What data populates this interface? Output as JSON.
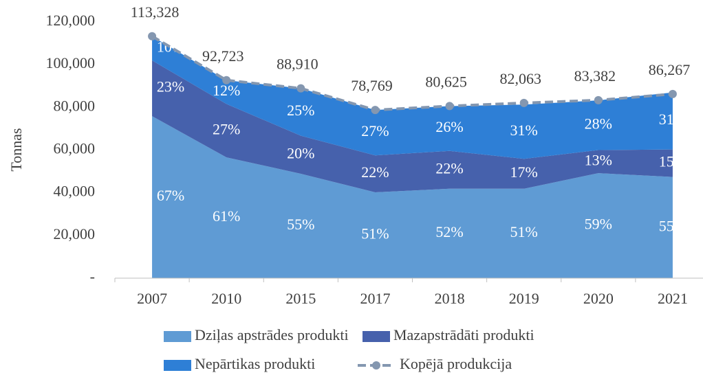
{
  "chart_data": {
    "type": "stacked_area",
    "y_label": "Tonnas",
    "categories": [
      "2007",
      "2010",
      "2015",
      "2017",
      "2018",
      "2019",
      "2020",
      "2021"
    ],
    "series": [
      {
        "name": "Dziļas apstrādes produkti",
        "color": "#5f9bd4",
        "values": [
          75900,
          56600,
          48900,
          40200,
          41900,
          41900,
          49200,
          47400
        ],
        "share_labels": [
          "67%",
          "61%",
          "55%",
          "51%",
          "52%",
          "51%",
          "59%",
          "55%"
        ]
      },
      {
        "name": "Mazapstrādāti produkti",
        "color": "#4661ac",
        "values": [
          26100,
          25000,
          17800,
          17300,
          17700,
          14000,
          10800,
          12900
        ],
        "share_labels": [
          "23%",
          "27%",
          "20%",
          "22%",
          "22%",
          "17%",
          "13%",
          "15%"
        ]
      },
      {
        "name": "Nepārtikas produkti",
        "color": "#2e7fd6",
        "values": [
          11300,
          11100,
          22200,
          21300,
          21000,
          25400,
          23300,
          26700
        ],
        "share_labels": [
          "10%",
          "12%",
          "25%",
          "27%",
          "26%",
          "31%",
          "28%",
          "31%"
        ]
      }
    ],
    "total": {
      "name": "Kopējā produkcija",
      "color": "#8497b0",
      "values": [
        113328,
        92723,
        88910,
        78769,
        80625,
        82063,
        83382,
        86267
      ],
      "value_labels": [
        "113,328",
        "92,723",
        "88,910",
        "78,769",
        "80,625",
        "82,063",
        "83,382",
        "86,267"
      ]
    },
    "ylim": [
      0,
      120000
    ],
    "yticks": [
      {
        "value": 0,
        "label": "-"
      },
      {
        "value": 20000,
        "label": "20,000"
      },
      {
        "value": 40000,
        "label": "40,000"
      },
      {
        "value": 60000,
        "label": "60,000"
      },
      {
        "value": 80000,
        "label": "80,000"
      },
      {
        "value": 100000,
        "label": "100,000"
      },
      {
        "value": 120000,
        "label": "120,000"
      }
    ]
  }
}
